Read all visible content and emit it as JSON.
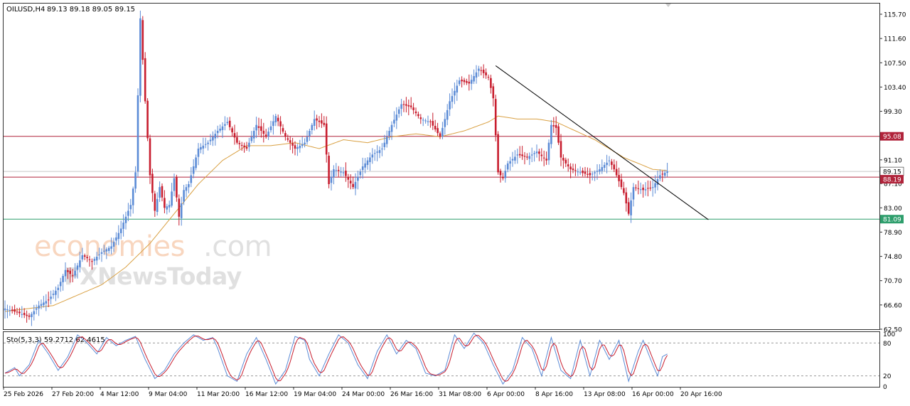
{
  "header": {
    "symbol_timeframe": "OILUSD,H4",
    "ohlc": "89.13 89.18 89.05 89.15"
  },
  "oscillator": {
    "label": "Sto(5,3,3) 59.2712 62.4615",
    "levels": [
      100,
      80,
      20,
      0
    ],
    "ylim": [
      0,
      100
    ],
    "colors": {
      "main": "#5b8bd6",
      "signal": "#c81d2e"
    }
  },
  "watermark": {
    "part1": "economies",
    "part2": ".com",
    "part3": "FXNewsToday"
  },
  "price_axis": {
    "ylim": [
      62.5,
      117.5
    ],
    "ticks": [
      "115.70",
      "111.60",
      "107.50",
      "103.40",
      "99.30",
      "95.20",
      "91.10",
      "87.10",
      "83.00",
      "78.90",
      "74.80",
      "70.70",
      "66.60",
      "62.50"
    ]
  },
  "time_axis": {
    "labels": [
      "25 Feb 2026",
      "27 Feb 20:00",
      "4 Mar 12:00",
      "9 Mar 04:00",
      "11 Mar 20:00",
      "16 Mar 12:00",
      "19 Mar 04:00",
      "24 Mar 00:00",
      "26 Mar 16:00",
      "31 Mar 08:00",
      "6 Apr 00:00",
      "8 Apr 16:00",
      "13 Apr 08:00",
      "16 Apr 00:00",
      "20 Apr 16:00"
    ]
  },
  "levels": [
    {
      "value": 95.08,
      "label": "95.08",
      "color": "#b0233a"
    },
    {
      "value": 88.19,
      "label": "88.19",
      "color": "#b0233a"
    },
    {
      "value": 81.09,
      "label": "81.09",
      "color": "#2e9e6c"
    }
  ],
  "current_price": {
    "value": 89.15,
    "label": "89.15"
  },
  "chart_data": {
    "type": "candlestick",
    "symbol": "OILUSD",
    "timeframe": "H4",
    "ylim": [
      62.5,
      117.5
    ],
    "colors": {
      "up": "#5b8bd6",
      "down": "#c81d2e",
      "ma": "#d9a042",
      "trendline": "#000000"
    },
    "price_anchors": [
      [
        0,
        66.0
      ],
      [
        6,
        65.2
      ],
      [
        10,
        64.6
      ],
      [
        14,
        66.5
      ],
      [
        18,
        67.5
      ],
      [
        22,
        69.5
      ],
      [
        25,
        72.5
      ],
      [
        28,
        71.5
      ],
      [
        32,
        75.0
      ],
      [
        36,
        74.0
      ],
      [
        40,
        75.5
      ],
      [
        44,
        76.5
      ],
      [
        48,
        79.5
      ],
      [
        52,
        83.5
      ],
      [
        54,
        89.0
      ],
      [
        56,
        115.0
      ],
      [
        58,
        101.0
      ],
      [
        60,
        88.5
      ],
      [
        62,
        82.5
      ],
      [
        64,
        86.5
      ],
      [
        66,
        83.0
      ],
      [
        68,
        83.5
      ],
      [
        70,
        88.0
      ],
      [
        72,
        81.5
      ],
      [
        74,
        86.0
      ],
      [
        76,
        87.0
      ],
      [
        80,
        93.0
      ],
      [
        84,
        94.0
      ],
      [
        88,
        96.0
      ],
      [
        92,
        97.5
      ],
      [
        96,
        94.0
      ],
      [
        100,
        93.0
      ],
      [
        104,
        97.0
      ],
      [
        108,
        95.0
      ],
      [
        112,
        98.5
      ],
      [
        116,
        95.0
      ],
      [
        120,
        93.0
      ],
      [
        124,
        94.0
      ],
      [
        128,
        98.0
      ],
      [
        132,
        97.0
      ],
      [
        134,
        87.0
      ],
      [
        136,
        89.5
      ],
      [
        140,
        89.0
      ],
      [
        144,
        86.5
      ],
      [
        148,
        90.0
      ],
      [
        152,
        92.0
      ],
      [
        156,
        93.0
      ],
      [
        160,
        97.0
      ],
      [
        164,
        100.5
      ],
      [
        168,
        100.0
      ],
      [
        172,
        98.0
      ],
      [
        176,
        97.5
      ],
      [
        180,
        95.0
      ],
      [
        184,
        101.0
      ],
      [
        188,
        104.5
      ],
      [
        192,
        104.0
      ],
      [
        196,
        106.5
      ],
      [
        200,
        105.0
      ],
      [
        202,
        101.5
      ],
      [
        204,
        89.0
      ],
      [
        206,
        88.0
      ],
      [
        208,
        90.5
      ],
      [
        212,
        92.0
      ],
      [
        216,
        91.5
      ],
      [
        220,
        92.5
      ],
      [
        224,
        91.0
      ],
      [
        226,
        97.0
      ],
      [
        228,
        96.5
      ],
      [
        230,
        91.5
      ],
      [
        234,
        89.5
      ],
      [
        238,
        89.0
      ],
      [
        242,
        88.5
      ],
      [
        246,
        89.5
      ],
      [
        250,
        91.0
      ],
      [
        252,
        89.5
      ],
      [
        254,
        87.5
      ],
      [
        256,
        85.5
      ],
      [
        258,
        82.0
      ],
      [
        260,
        86.5
      ],
      [
        264,
        86.0
      ],
      [
        268,
        86.5
      ],
      [
        271,
        88.5
      ],
      [
        274,
        89.15
      ]
    ],
    "trendline": {
      "from": {
        "bar": 203,
        "price": 107.0
      },
      "to": {
        "bar": 291,
        "price": 81.0
      }
    },
    "moving_average_anchors": [
      [
        0,
        65.5
      ],
      [
        20,
        66.5
      ],
      [
        40,
        70.0
      ],
      [
        50,
        73.0
      ],
      [
        60,
        77.0
      ],
      [
        72,
        83.0
      ],
      [
        80,
        87.0
      ],
      [
        90,
        91.0
      ],
      [
        100,
        93.5
      ],
      [
        110,
        93.5
      ],
      [
        120,
        94.0
      ],
      [
        130,
        93.0
      ],
      [
        140,
        94.5
      ],
      [
        150,
        94.0
      ],
      [
        160,
        95.0
      ],
      [
        170,
        95.5
      ],
      [
        180,
        95.0
      ],
      [
        190,
        96.0
      ],
      [
        200,
        97.5
      ],
      [
        204,
        98.5
      ],
      [
        212,
        98.0
      ],
      [
        220,
        98.0
      ],
      [
        228,
        97.5
      ],
      [
        236,
        96.0
      ],
      [
        244,
        94.5
      ],
      [
        250,
        93.0
      ],
      [
        256,
        91.5
      ],
      [
        262,
        90.5
      ],
      [
        268,
        89.5
      ],
      [
        274,
        89.3
      ]
    ],
    "stochastic_anchors": [
      [
        0,
        25
      ],
      [
        4,
        35
      ],
      [
        6,
        20
      ],
      [
        10,
        40
      ],
      [
        14,
        85
      ],
      [
        18,
        60
      ],
      [
        22,
        30
      ],
      [
        26,
        55
      ],
      [
        30,
        95
      ],
      [
        34,
        80
      ],
      [
        38,
        60
      ],
      [
        42,
        90
      ],
      [
        46,
        75
      ],
      [
        50,
        85
      ],
      [
        54,
        92
      ],
      [
        58,
        50
      ],
      [
        62,
        15
      ],
      [
        66,
        30
      ],
      [
        70,
        60
      ],
      [
        74,
        80
      ],
      [
        78,
        95
      ],
      [
        82,
        85
      ],
      [
        86,
        90
      ],
      [
        88,
        70
      ],
      [
        92,
        20
      ],
      [
        96,
        10
      ],
      [
        100,
        60
      ],
      [
        104,
        90
      ],
      [
        108,
        50
      ],
      [
        112,
        5
      ],
      [
        116,
        30
      ],
      [
        120,
        92
      ],
      [
        124,
        85
      ],
      [
        126,
        50
      ],
      [
        130,
        20
      ],
      [
        134,
        60
      ],
      [
        138,
        95
      ],
      [
        142,
        80
      ],
      [
        146,
        40
      ],
      [
        150,
        15
      ],
      [
        154,
        65
      ],
      [
        158,
        95
      ],
      [
        162,
        60
      ],
      [
        166,
        85
      ],
      [
        170,
        70
      ],
      [
        174,
        25
      ],
      [
        178,
        20
      ],
      [
        182,
        30
      ],
      [
        186,
        95
      ],
      [
        190,
        70
      ],
      [
        194,
        98
      ],
      [
        198,
        80
      ],
      [
        202,
        40
      ],
      [
        206,
        5
      ],
      [
        210,
        30
      ],
      [
        214,
        90
      ],
      [
        218,
        70
      ],
      [
        222,
        20
      ],
      [
        226,
        90
      ],
      [
        230,
        30
      ],
      [
        234,
        15
      ],
      [
        238,
        85
      ],
      [
        242,
        20
      ],
      [
        246,
        85
      ],
      [
        250,
        50
      ],
      [
        254,
        85
      ],
      [
        258,
        10
      ],
      [
        262,
        65
      ],
      [
        264,
        85
      ],
      [
        268,
        40
      ],
      [
        270,
        20
      ],
      [
        272,
        55
      ],
      [
        274,
        60
      ]
    ],
    "stochastic_last": {
      "main": 59.2712,
      "signal": 62.4615
    }
  }
}
